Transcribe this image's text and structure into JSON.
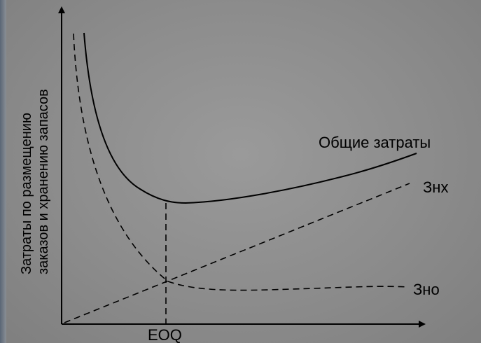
{
  "chart_data": {
    "type": "line",
    "ylabel_line1": "Затраты по размещению",
    "ylabel_line2": "заказов и хранению запасов",
    "xtick_label": "EOQ",
    "series": [
      {
        "name": "Общие затраты",
        "style": "solid"
      },
      {
        "name": "Знх",
        "style": "dashed"
      },
      {
        "name": "Зно",
        "style": "dashed"
      }
    ],
    "grid": false,
    "colors": {
      "ink": "#000000",
      "background": "#8c8c8c"
    }
  }
}
